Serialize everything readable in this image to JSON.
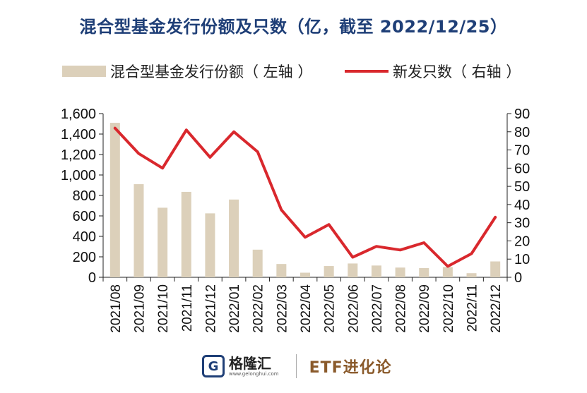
{
  "title": "混合型基金发行份额及只数（亿，截至 2022/12/25）",
  "legend": {
    "bar_label": "混合型基金发行份额（ 左轴 ）",
    "line_label": "新发只数（ 右轴 ）"
  },
  "colors": {
    "bar": "#dcd0ba",
    "line": "#d9282d",
    "title": "#1f3f77",
    "column_name": "#8a5a2b"
  },
  "chart_data": {
    "type": "bar+line",
    "title": "混合型基金发行份额及只数（亿，截至 2022/12/25）",
    "categories": [
      "2021/08",
      "2021/09",
      "2021/10",
      "2021/11",
      "2021/12",
      "2022/01",
      "2022/02",
      "2022/03",
      "2022/04",
      "2022/05",
      "2022/06",
      "2022/07",
      "2022/08",
      "2022/09",
      "2022/10",
      "2022/11",
      "2022/12"
    ],
    "series": [
      {
        "name": "混合型基金发行份额（ 左轴 ）",
        "type": "bar",
        "axis": "left",
        "values": [
          1510,
          910,
          680,
          835,
          625,
          760,
          270,
          130,
          45,
          110,
          135,
          115,
          95,
          90,
          100,
          40,
          155
        ]
      },
      {
        "name": "新发只数（ 右轴 ）",
        "type": "line",
        "axis": "right",
        "values": [
          82,
          68,
          60,
          81,
          66,
          80,
          69,
          37,
          22,
          29,
          11,
          17,
          15,
          19,
          6,
          13,
          33
        ]
      }
    ],
    "y_left": {
      "ticks": [
        "0",
        "200",
        "400",
        "600",
        "800",
        "1,000",
        "1,200",
        "1,400",
        "1,600"
      ],
      "ylim": [
        0,
        1600
      ]
    },
    "y_right": {
      "ticks": [
        "0",
        "10",
        "20",
        "30",
        "40",
        "50",
        "60",
        "70",
        "80",
        "90"
      ],
      "ylim": [
        0,
        90
      ]
    },
    "legend_position": "top"
  },
  "footer": {
    "logo_glyph": "G",
    "brand_name": "格隆汇",
    "brand_site": "www.gelonghui.com",
    "column_name": "ETF进化论"
  }
}
